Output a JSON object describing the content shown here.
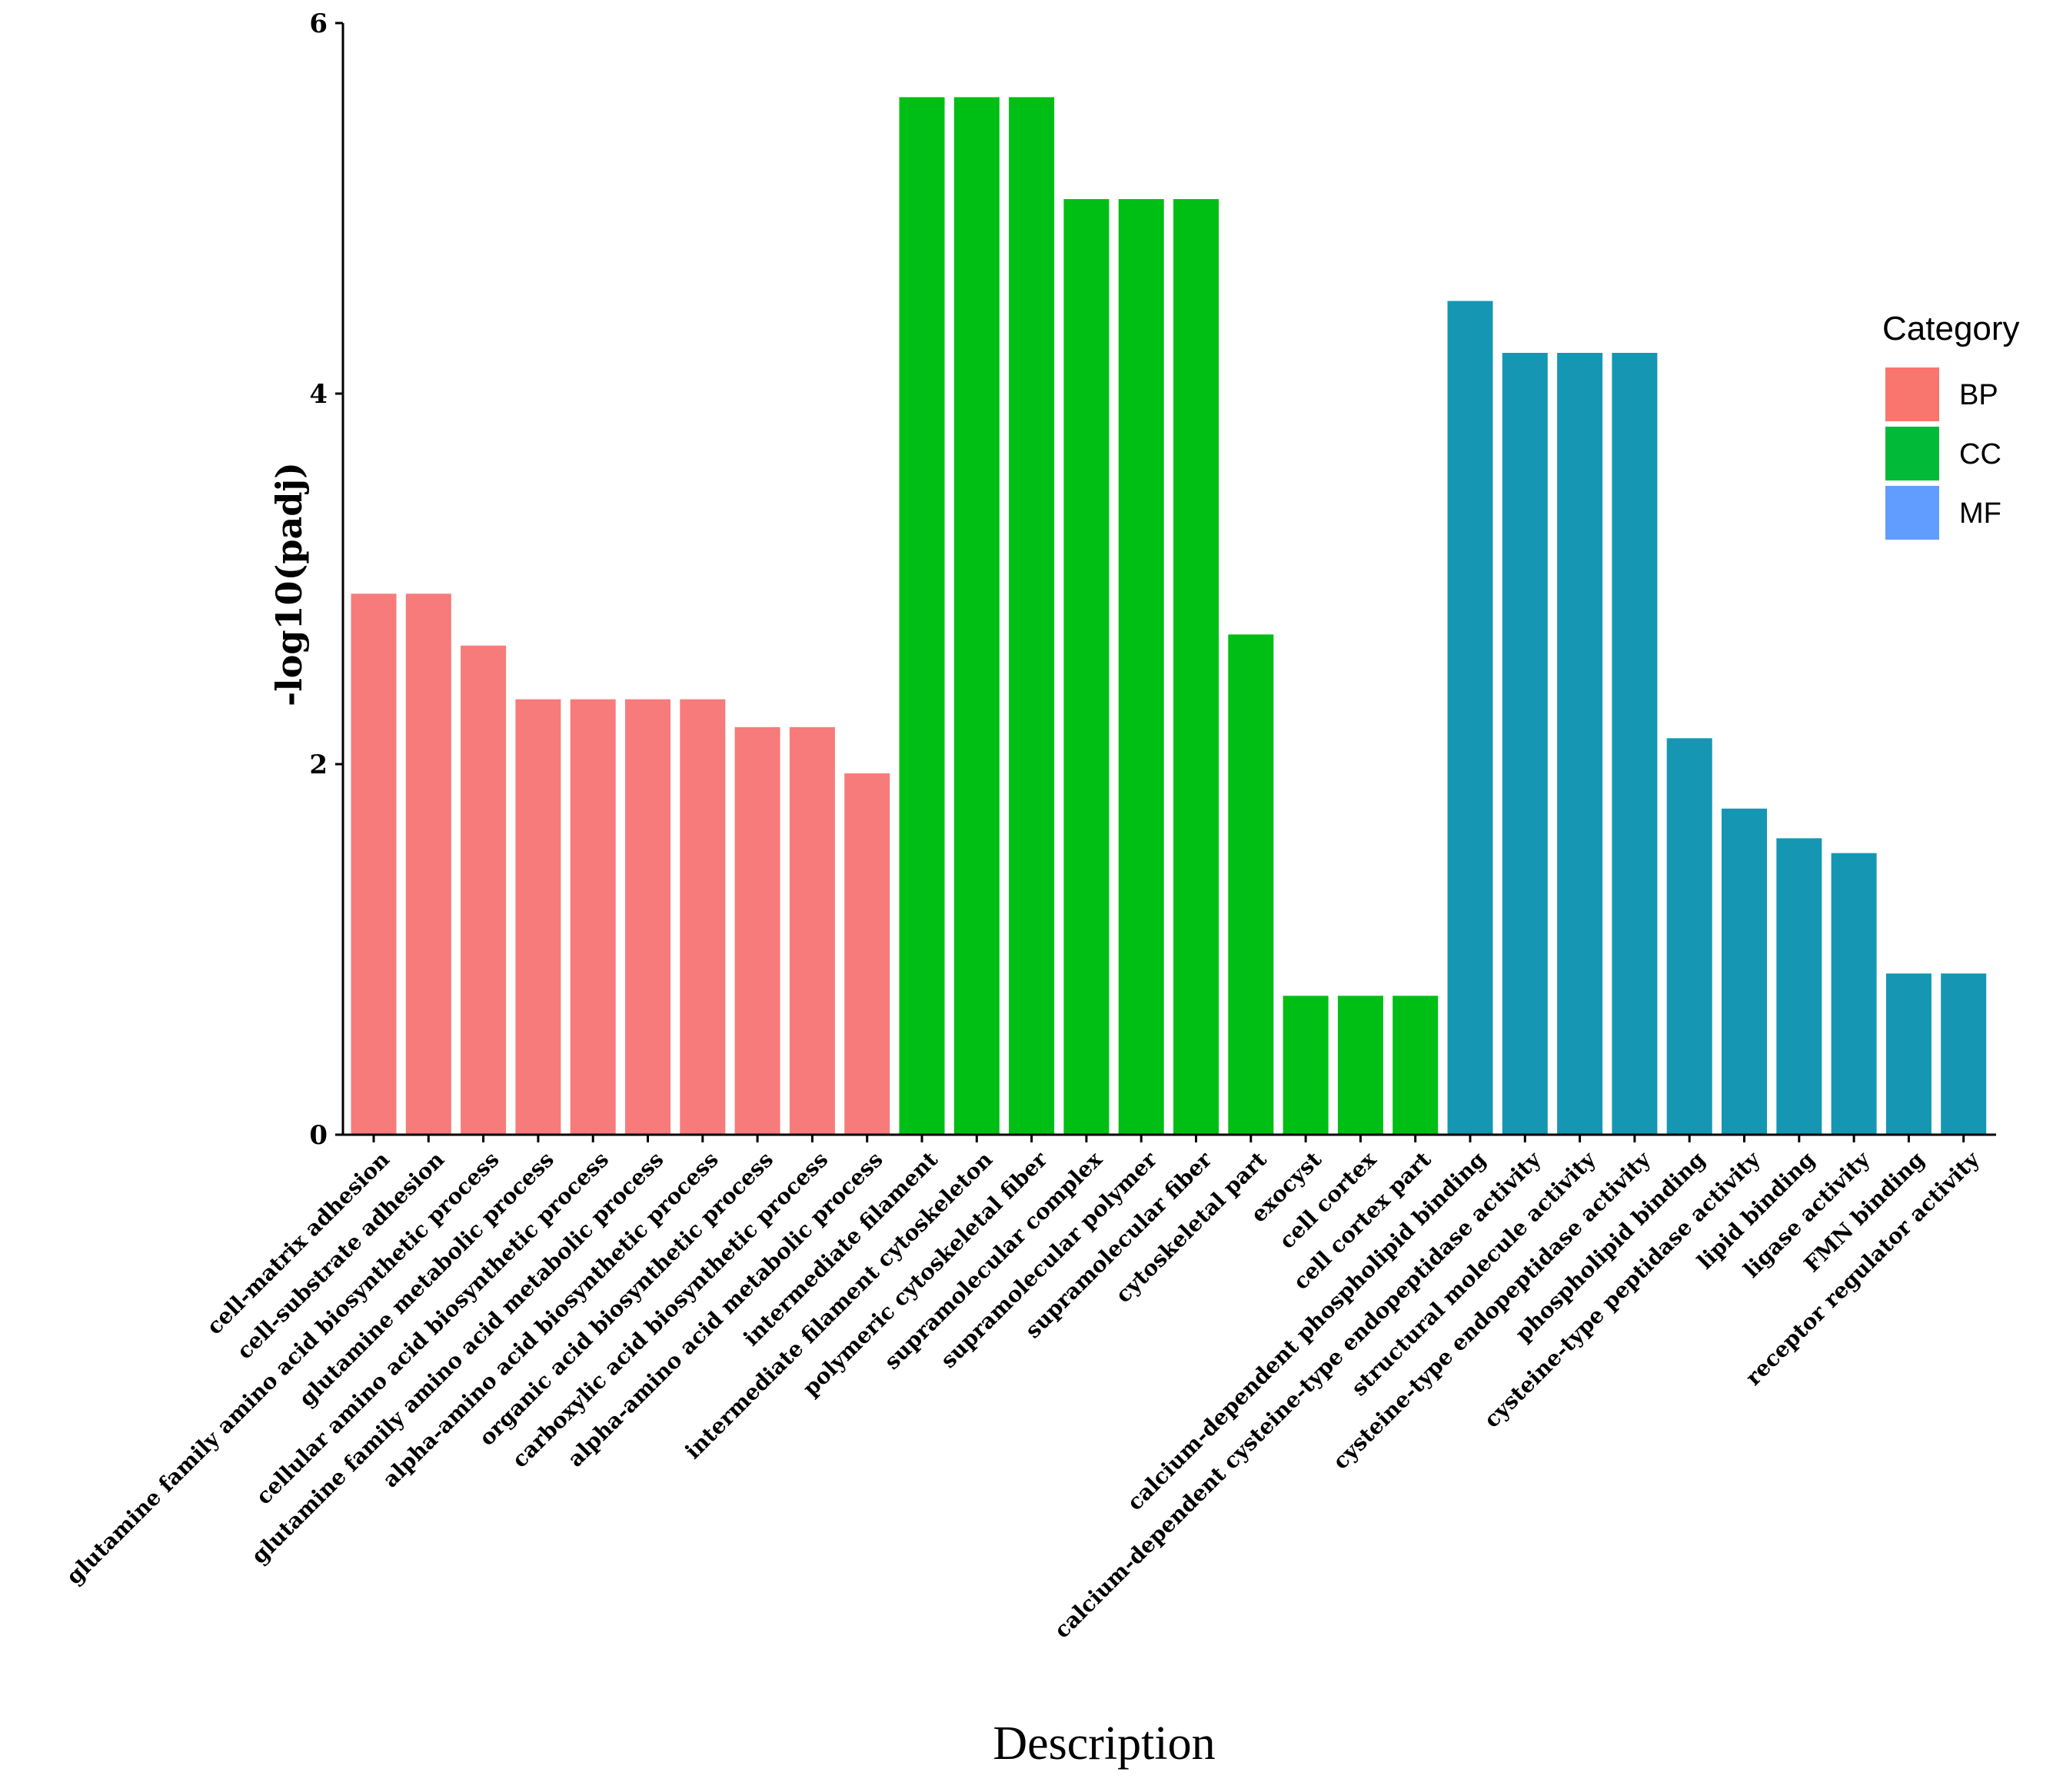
{
  "chart_data": {
    "type": "bar",
    "title": "",
    "xlabel": "Description",
    "ylabel": "-log10(padj)",
    "ylim": [
      0,
      6
    ],
    "yticks": [
      "0",
      "2",
      "4",
      "6"
    ],
    "grid": false,
    "legend": {
      "title": "Category",
      "position": "right",
      "entries": [
        {
          "label": "BP",
          "color": "#F8766D"
        },
        {
          "label": "CC",
          "color": "#00BA38"
        },
        {
          "label": "MF",
          "color": "#619CFF"
        }
      ]
    },
    "bar_colors": {
      "BP": "#F77B7B",
      "CC": "#00BF14",
      "MF": "#1597B3"
    },
    "bars": [
      {
        "label": "cell-matrix adhesion",
        "category": "BP",
        "value": 2.92
      },
      {
        "label": "cell-substrate adhesion",
        "category": "BP",
        "value": 2.92
      },
      {
        "label": "glutamine family amino acid biosynthetic process",
        "category": "BP",
        "value": 2.64
      },
      {
        "label": "glutamine metabolic process",
        "category": "BP",
        "value": 2.35
      },
      {
        "label": "cellular amino acid biosynthetic process",
        "category": "BP",
        "value": 2.35
      },
      {
        "label": "glutamine family amino acid metabolic process",
        "category": "BP",
        "value": 2.35
      },
      {
        "label": "alpha-amino acid biosynthetic process",
        "category": "BP",
        "value": 2.35
      },
      {
        "label": "organic acid biosynthetic process",
        "category": "BP",
        "value": 2.2
      },
      {
        "label": "carboxylic acid biosynthetic process",
        "category": "BP",
        "value": 2.2
      },
      {
        "label": "alpha-amino acid metabolic process",
        "category": "BP",
        "value": 1.95
      },
      {
        "label": "intermediate filament",
        "category": "CC",
        "value": 5.6
      },
      {
        "label": "intermediate filament cytoskeleton",
        "category": "CC",
        "value": 5.6
      },
      {
        "label": "polymeric cytoskeletal fiber",
        "category": "CC",
        "value": 5.6
      },
      {
        "label": "supramolecular complex",
        "category": "CC",
        "value": 5.05
      },
      {
        "label": "supramolecular polymer",
        "category": "CC",
        "value": 5.05
      },
      {
        "label": "supramolecular fiber",
        "category": "CC",
        "value": 5.05
      },
      {
        "label": "cytoskeletal part",
        "category": "CC",
        "value": 2.7
      },
      {
        "label": "exocyst",
        "category": "CC",
        "value": 0.75
      },
      {
        "label": "cell cortex",
        "category": "CC",
        "value": 0.75
      },
      {
        "label": "cell cortex part",
        "category": "CC",
        "value": 0.75
      },
      {
        "label": "calcium-dependent phospholipid binding",
        "category": "MF",
        "value": 4.5
      },
      {
        "label": "calcium-dependent cysteine-type endopeptidase activity",
        "category": "MF",
        "value": 4.22
      },
      {
        "label": "structural molecule activity",
        "category": "MF",
        "value": 4.22
      },
      {
        "label": "cysteine-type endopeptidase activity",
        "category": "MF",
        "value": 4.22
      },
      {
        "label": "phospholipid binding",
        "category": "MF",
        "value": 2.14
      },
      {
        "label": "cysteine-type peptidase activity",
        "category": "MF",
        "value": 1.76
      },
      {
        "label": "lipid binding",
        "category": "MF",
        "value": 1.6
      },
      {
        "label": "ligase activity",
        "category": "MF",
        "value": 1.52
      },
      {
        "label": "FMN binding",
        "category": "MF",
        "value": 0.87
      },
      {
        "label": "receptor regulator activity",
        "category": "MF",
        "value": 0.87
      }
    ]
  }
}
